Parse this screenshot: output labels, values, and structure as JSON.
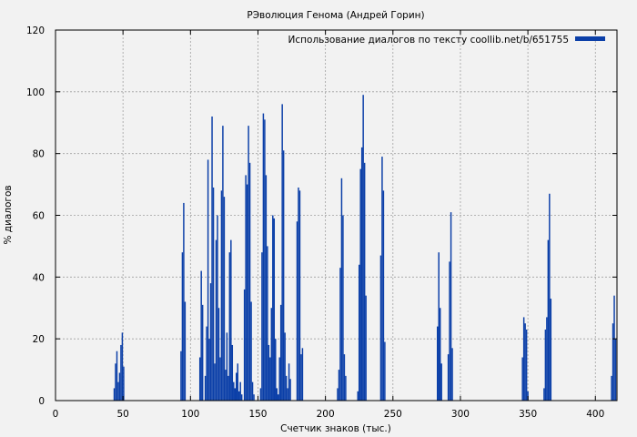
{
  "chart_data": {
    "type": "bar",
    "title": "РЭволюция Генома (Андрей Горин)",
    "xlabel": "Счетчик знаков (тыс.)",
    "ylabel": "% диалогов",
    "xlim": [
      0,
      416
    ],
    "ylim": [
      0,
      120
    ],
    "xticks": [
      0,
      50,
      100,
      150,
      200,
      250,
      300,
      350,
      400
    ],
    "yticks": [
      0,
      20,
      40,
      60,
      80,
      100,
      120
    ],
    "grid": true,
    "legend_position": "top-right",
    "color": "#0b3fa8",
    "series": [
      {
        "name": "Использование диалогов по тексту coollib.net/b/651755",
        "points": [
          [
            43.5,
            4
          ],
          [
            44.5,
            12
          ],
          [
            45.5,
            16
          ],
          [
            46.5,
            6
          ],
          [
            47.5,
            9
          ],
          [
            48.5,
            18
          ],
          [
            49.5,
            22
          ],
          [
            50.5,
            11
          ],
          [
            93,
            16
          ],
          [
            94,
            48
          ],
          [
            95,
            64
          ],
          [
            96,
            32
          ],
          [
            107,
            14
          ],
          [
            108,
            42
          ],
          [
            109,
            31
          ],
          [
            111,
            8
          ],
          [
            112,
            24
          ],
          [
            113,
            78
          ],
          [
            114,
            20
          ],
          [
            115,
            38
          ],
          [
            116,
            92
          ],
          [
            117,
            69
          ],
          [
            118,
            12
          ],
          [
            119,
            52
          ],
          [
            120,
            60
          ],
          [
            121,
            30
          ],
          [
            122,
            14
          ],
          [
            123,
            68
          ],
          [
            124,
            89
          ],
          [
            125,
            66
          ],
          [
            126,
            10
          ],
          [
            127,
            22
          ],
          [
            128,
            8
          ],
          [
            129,
            48
          ],
          [
            130,
            52
          ],
          [
            131,
            18
          ],
          [
            132,
            6
          ],
          [
            133,
            4
          ],
          [
            134,
            9
          ],
          [
            135,
            12
          ],
          [
            136,
            3
          ],
          [
            137,
            6
          ],
          [
            138,
            2
          ],
          [
            140,
            36
          ],
          [
            141,
            73
          ],
          [
            142,
            70
          ],
          [
            143,
            89
          ],
          [
            144,
            77
          ],
          [
            145,
            32
          ],
          [
            146,
            6
          ],
          [
            147,
            2
          ],
          [
            152,
            4
          ],
          [
            153,
            48
          ],
          [
            154,
            93
          ],
          [
            155,
            91
          ],
          [
            156,
            73
          ],
          [
            157,
            50
          ],
          [
            158,
            18
          ],
          [
            159,
            14
          ],
          [
            160,
            30
          ],
          [
            161,
            60
          ],
          [
            162,
            59
          ],
          [
            163,
            20
          ],
          [
            164,
            4
          ],
          [
            165,
            2
          ],
          [
            166,
            14
          ],
          [
            167,
            31
          ],
          [
            168,
            96
          ],
          [
            169,
            81
          ],
          [
            170,
            22
          ],
          [
            171,
            8
          ],
          [
            172,
            4
          ],
          [
            173,
            12
          ],
          [
            174,
            7
          ],
          [
            179,
            58
          ],
          [
            180,
            69
          ],
          [
            181,
            68
          ],
          [
            182,
            15
          ],
          [
            183,
            17
          ],
          [
            209,
            4
          ],
          [
            210,
            10
          ],
          [
            211,
            43
          ],
          [
            212,
            72
          ],
          [
            213,
            60
          ],
          [
            214,
            15
          ],
          [
            215,
            8
          ],
          [
            224,
            3
          ],
          [
            225,
            44
          ],
          [
            226,
            75
          ],
          [
            227,
            82
          ],
          [
            228,
            99
          ],
          [
            229,
            77
          ],
          [
            230,
            34
          ],
          [
            241,
            47
          ],
          [
            242,
            79
          ],
          [
            243,
            68
          ],
          [
            244,
            19
          ],
          [
            283,
            24
          ],
          [
            284,
            48
          ],
          [
            285,
            30
          ],
          [
            286,
            12
          ],
          [
            291,
            15
          ],
          [
            292,
            45
          ],
          [
            293,
            61
          ],
          [
            294,
            17
          ],
          [
            346,
            14
          ],
          [
            347,
            27
          ],
          [
            348,
            25
          ],
          [
            349,
            23
          ],
          [
            350,
            3
          ],
          [
            362,
            4
          ],
          [
            363,
            23
          ],
          [
            364,
            27
          ],
          [
            365,
            52
          ],
          [
            366,
            67
          ],
          [
            367,
            33
          ],
          [
            412,
            8
          ],
          [
            413,
            25
          ],
          [
            414,
            34
          ],
          [
            415,
            20
          ]
        ]
      }
    ]
  }
}
